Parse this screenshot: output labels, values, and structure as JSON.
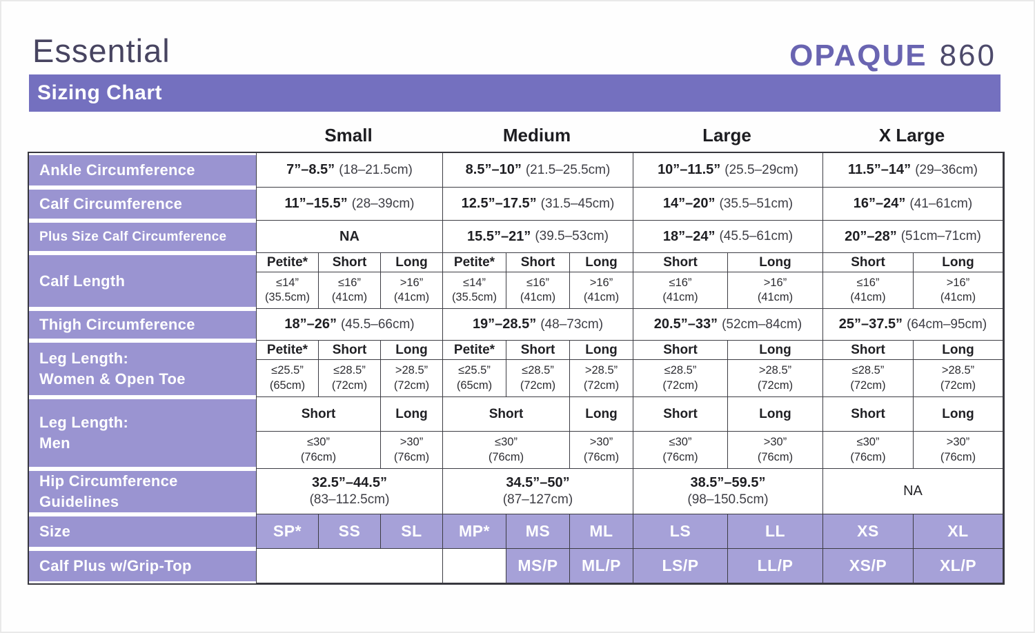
{
  "header": {
    "product_line": "Essential",
    "brand": "OPAQUE",
    "model": "860",
    "banner_title": "Sizing Chart",
    "size_columns": [
      "Small",
      "Medium",
      "Large",
      "X Large"
    ]
  },
  "colors": {
    "banner_purple": "#7470bf",
    "row_label_purple": "#9a94d1",
    "size_cell_purple": "#a6a1d8",
    "brand_purple": "#6964b1",
    "border_dark": "#3b3b42"
  },
  "rows": {
    "ankle": {
      "label": "Ankle Circumference",
      "cells": [
        {
          "in": "7”–8.5”",
          "cm": "(18–21.5cm)"
        },
        {
          "in": "8.5”–10”",
          "cm": "(21.5–25.5cm)"
        },
        {
          "in": "10”–11.5”",
          "cm": "(25.5–29cm)"
        },
        {
          "in": "11.5”–14”",
          "cm": "(29–36cm)"
        }
      ]
    },
    "calf_circ": {
      "label": "Calf Circumference",
      "cells": [
        {
          "in": "11”–15.5”",
          "cm": "(28–39cm)"
        },
        {
          "in": "12.5”–17.5”",
          "cm": "(31.5–45cm)"
        },
        {
          "in": "14”–20”",
          "cm": "(35.5–51cm)"
        },
        {
          "in": "16”–24”",
          "cm": "(41–61cm)"
        }
      ]
    },
    "plus_calf": {
      "label": "Plus Size Calf Circumference",
      "na": "NA",
      "cells": [
        {
          "in": "15.5”–21”",
          "cm": "(39.5–53cm)"
        },
        {
          "in": "18”–24”",
          "cm": "(45.5–61cm)"
        },
        {
          "in": "20”–28”",
          "cm": "(51cm–71cm)"
        }
      ]
    },
    "calf_length": {
      "label": "Calf Length",
      "headers": [
        "Petite*",
        "Short",
        "Long",
        "Petite*",
        "Short",
        "Long",
        "Short",
        "Long",
        "Short",
        "Long"
      ],
      "values": [
        "≤14”\n(35.5cm)",
        "≤16”\n(41cm)",
        ">16”\n(41cm)",
        "≤14”\n(35.5cm)",
        "≤16”\n(41cm)",
        ">16”\n(41cm)",
        "≤16”\n(41cm)",
        ">16”\n(41cm)",
        "≤16”\n(41cm)",
        ">16”\n(41cm)"
      ]
    },
    "thigh": {
      "label": "Thigh Circumference",
      "cells": [
        {
          "in": "18”–26”",
          "cm": "(45.5–66cm)"
        },
        {
          "in": "19”–28.5”",
          "cm": "(48–73cm)"
        },
        {
          "in": "20.5”–33”",
          "cm": "(52cm–84cm)"
        },
        {
          "in": "25”–37.5”",
          "cm": "(64cm–95cm)"
        }
      ]
    },
    "leg_women": {
      "label": "Leg Length:\nWomen & Open Toe",
      "headers": [
        "Petite*",
        "Short",
        "Long",
        "Petite*",
        "Short",
        "Long",
        "Short",
        "Long",
        "Short",
        "Long"
      ],
      "values": [
        "≤25.5”\n(65cm)",
        "≤28.5”\n(72cm)",
        ">28.5”\n(72cm)",
        "≤25.5”\n(65cm)",
        "≤28.5”\n(72cm)",
        ">28.5”\n(72cm)",
        "≤28.5”\n(72cm)",
        ">28.5”\n(72cm)",
        "≤28.5”\n(72cm)",
        ">28.5”\n(72cm)"
      ]
    },
    "leg_men": {
      "label": "Leg Length:\nMen",
      "headers": [
        "Short",
        "Long",
        "Short",
        "Long",
        "Short",
        "Long",
        "Short",
        "Long"
      ],
      "values": [
        "≤30”\n(76cm)",
        ">30”\n(76cm)",
        "≤30”\n(76cm)",
        ">30”\n(76cm)",
        "≤30”\n(76cm)",
        ">30”\n(76cm)",
        "≤30”\n(76cm)",
        ">30”\n(76cm)"
      ]
    },
    "hip": {
      "label": "Hip Circumference\nGuidelines",
      "cells": [
        {
          "in": "32.5”–44.5”",
          "cm": "(83–112.5cm)"
        },
        {
          "in": "34.5”–50”",
          "cm": "(87–127cm)"
        },
        {
          "in": "38.5”–59.5”",
          "cm": "(98–150.5cm)"
        }
      ],
      "na": "NA"
    },
    "size": {
      "label": "Size",
      "values": [
        "SP*",
        "SS",
        "SL",
        "MP*",
        "MS",
        "ML",
        "LS",
        "LL",
        "XS",
        "XL"
      ]
    },
    "calf_plus": {
      "label": "Calf Plus w/Grip-Top",
      "values": [
        "MS/P",
        "ML/P",
        "LS/P",
        "LL/P",
        "XS/P",
        "XL/P"
      ]
    }
  }
}
